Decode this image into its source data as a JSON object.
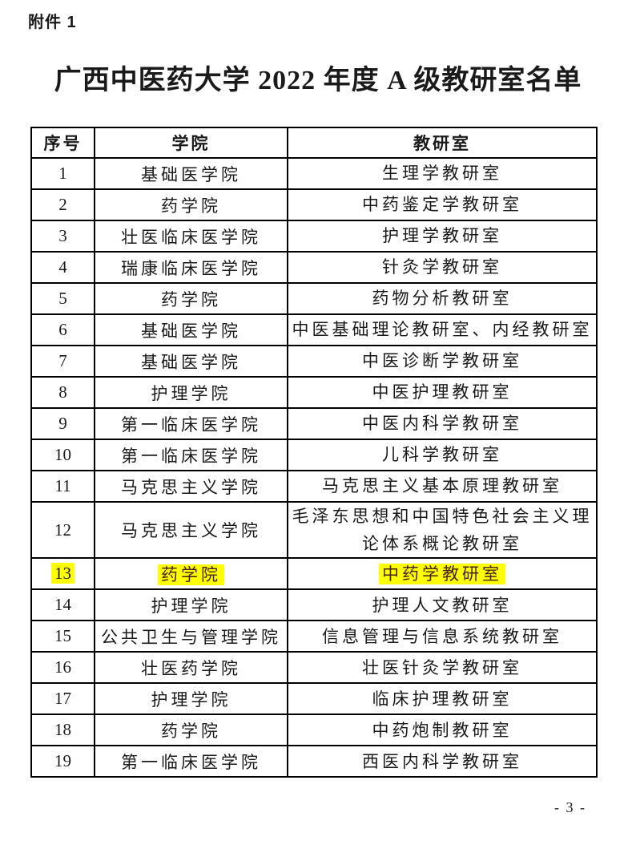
{
  "page": {
    "attachment_label": "附件 1",
    "title": "广西中医药大学 2022 年度 A 级教研室名单",
    "page_number": "- 3 -"
  },
  "colors": {
    "highlight": "#ffff00",
    "highlight_text": "#47210d",
    "text": "#1a1a1a"
  },
  "table": {
    "headers": [
      "序号",
      "学院",
      "教研室"
    ],
    "rows": [
      {
        "no": "1",
        "college": "基础医学院",
        "office": "生理学教研室",
        "highlight": false
      },
      {
        "no": "2",
        "college": "药学院",
        "office": "中药鉴定学教研室",
        "highlight": false
      },
      {
        "no": "3",
        "college": "壮医临床医学院",
        "office": "护理学教研室",
        "highlight": false
      },
      {
        "no": "4",
        "college": "瑞康临床医学院",
        "office": "针灸学教研室",
        "highlight": false
      },
      {
        "no": "5",
        "college": "药学院",
        "office": "药物分析教研室",
        "highlight": false
      },
      {
        "no": "6",
        "college": "基础医学院",
        "office": "中医基础理论教研室、内经教研室",
        "highlight": false
      },
      {
        "no": "7",
        "college": "基础医学院",
        "office": "中医诊断学教研室",
        "highlight": false
      },
      {
        "no": "8",
        "college": "护理学院",
        "office": "中医护理教研室",
        "highlight": false
      },
      {
        "no": "9",
        "college": "第一临床医学院",
        "office": "中医内科学教研室",
        "highlight": false
      },
      {
        "no": "10",
        "college": "第一临床医学院",
        "office": "儿科学教研室",
        "highlight": false
      },
      {
        "no": "11",
        "college": "马克思主义学院",
        "office": "马克思主义基本原理教研室",
        "highlight": false
      },
      {
        "no": "12",
        "college": "马克思主义学院",
        "office": "毛泽东思想和中国特色社会主义理论体系概论教研室",
        "highlight": false
      },
      {
        "no": "13",
        "college": "药学院",
        "office": "中药学教研室",
        "highlight": true
      },
      {
        "no": "14",
        "college": "护理学院",
        "office": "护理人文教研室",
        "highlight": false
      },
      {
        "no": "15",
        "college": "公共卫生与管理学院",
        "office": "信息管理与信息系统教研室",
        "highlight": false
      },
      {
        "no": "16",
        "college": "壮医药学院",
        "office": "壮医针灸学教研室",
        "highlight": false
      },
      {
        "no": "17",
        "college": "护理学院",
        "office": "临床护理教研室",
        "highlight": false
      },
      {
        "no": "18",
        "college": "药学院",
        "office": "中药炮制教研室",
        "highlight": false
      },
      {
        "no": "19",
        "college": "第一临床医学院",
        "office": "西医内科学教研室",
        "highlight": false
      }
    ]
  }
}
